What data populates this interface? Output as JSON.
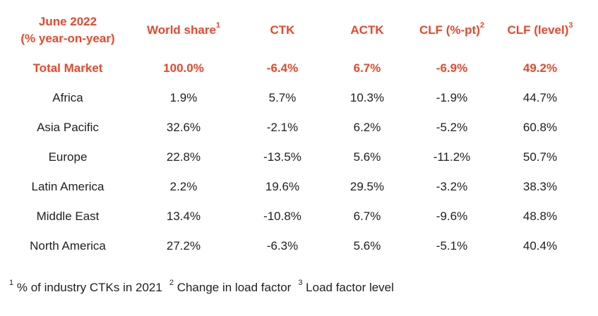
{
  "colors": {
    "accent": "#e8472b",
    "text": "#1f1f1f",
    "background": "#ffffff"
  },
  "header": {
    "period_line1": "June 2022",
    "period_line2": "(% year-on-year)",
    "world_share": "World share",
    "world_share_sup": "1",
    "ctk": "CTK",
    "actk": "ACTK",
    "clf_pt": "CLF (%-pt)",
    "clf_pt_sup": "2",
    "clf_level": "CLF (level)",
    "clf_level_sup": "3"
  },
  "rows": [
    {
      "region": "Total Market",
      "world_share": "100.0%",
      "ctk": "-6.4%",
      "actk": "6.7%",
      "clf_pt": "-6.9%",
      "clf_level": "49.2%"
    },
    {
      "region": "Africa",
      "world_share": "1.9%",
      "ctk": "5.7%",
      "actk": "10.3%",
      "clf_pt": "-1.9%",
      "clf_level": "44.7%"
    },
    {
      "region": "Asia Pacific",
      "world_share": "32.6%",
      "ctk": "-2.1%",
      "actk": "6.2%",
      "clf_pt": "-5.2%",
      "clf_level": "60.8%"
    },
    {
      "region": "Europe",
      "world_share": "22.8%",
      "ctk": "-13.5%",
      "actk": "5.6%",
      "clf_pt": "-11.2%",
      "clf_level": "50.7%"
    },
    {
      "region": "Latin America",
      "world_share": "2.2%",
      "ctk": "19.6%",
      "actk": "29.5%",
      "clf_pt": "-3.2%",
      "clf_level": "38.3%"
    },
    {
      "region": "Middle East",
      "world_share": "13.4%",
      "ctk": "-10.8%",
      "actk": "6.7%",
      "clf_pt": "-9.6%",
      "clf_level": "48.8%"
    },
    {
      "region": "North America",
      "world_share": "27.2%",
      "ctk": "-6.3%",
      "actk": "5.6%",
      "clf_pt": "-5.1%",
      "clf_level": "40.4%"
    }
  ],
  "footnotes": [
    {
      "mark": "1",
      "text": "% of industry CTKs in 2021"
    },
    {
      "mark": "2",
      "text": "Change in load factor"
    },
    {
      "mark": "3",
      "text": "Load factor level"
    }
  ]
}
